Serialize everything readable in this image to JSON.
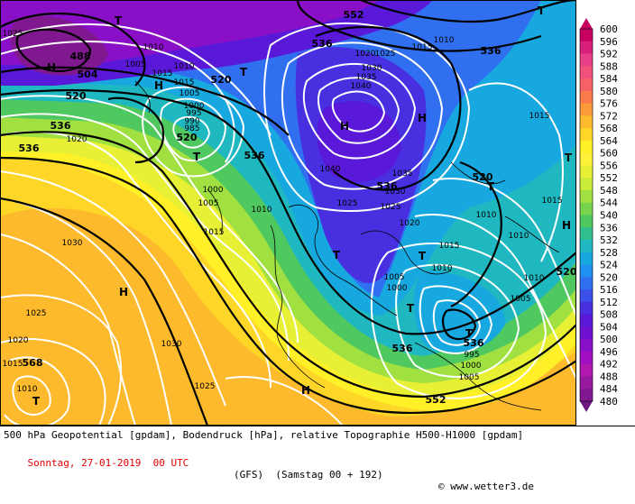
{
  "legend": {
    "values": [
      "600",
      "596",
      "592",
      "588",
      "584",
      "580",
      "576",
      "572",
      "568",
      "564",
      "560",
      "556",
      "552",
      "548",
      "544",
      "540",
      "536",
      "532",
      "528",
      "524",
      "520",
      "516",
      "512",
      "508",
      "504",
      "500",
      "496",
      "492",
      "488",
      "484",
      "480"
    ],
    "colors": [
      "#c80060",
      "#d8207a",
      "#e84088",
      "#f0507a",
      "#f86068",
      "#fb7a4c",
      "#fc9a38",
      "#fdba2c",
      "#fed628",
      "#fff028",
      "#fff33a",
      "#e8f035",
      "#c8ec38",
      "#a0e040",
      "#78d44c",
      "#50c860",
      "#30c090",
      "#20b8c0",
      "#18a8e0",
      "#2090f0",
      "#3070f0",
      "#3a50e8",
      "#4830e0",
      "#5a18d8",
      "#7010d0",
      "#8a10c8",
      "#a010c0",
      "#b018b0",
      "#9818a0",
      "#801890",
      "#6a1880"
    ]
  },
  "footer": {
    "line1": "500 hPa Geopotential [gpdam], Bodendruck [hPa], relative Topographie H500-H1000 [gpdam]",
    "date": "Sonntag, 27-01-2019  00 UTC",
    "model": "(GFS)  (Samstag 00 + 192)",
    "copyright": "© www.wetter3.de"
  },
  "map": {
    "geopotential_labels": [
      "520",
      "536",
      "552",
      "568",
      "536",
      "520",
      "488",
      "504",
      "520",
      "536",
      "520",
      "536",
      "536",
      "536",
      "536",
      "552",
      "536",
      "520"
    ],
    "pressure_labels": [
      "1025",
      "1010",
      "1015",
      "1010",
      "1005",
      "1015",
      "1020",
      "1025",
      "1030",
      "1035",
      "1040",
      "1040",
      "1035",
      "1030",
      "1025",
      "1025",
      "1020",
      "1015",
      "1010",
      "1005",
      "1000",
      "995",
      "990",
      "985",
      "1000",
      "1005",
      "1010",
      "1015",
      "1005",
      "1000",
      "995",
      "1000",
      "1005",
      "1010",
      "1030",
      "1025",
      "1020",
      "1015",
      "1030",
      "1025",
      "1010",
      "1015",
      "1020",
      "1015",
      "1010",
      "1015",
      "1010",
      "1005",
      "1010"
    ],
    "centers": [
      "T",
      "T",
      "H",
      "T",
      "H",
      "T",
      "H",
      "H",
      "T",
      "T",
      "T",
      "T",
      "T",
      "H",
      "H",
      "T",
      "H",
      "T"
    ]
  }
}
